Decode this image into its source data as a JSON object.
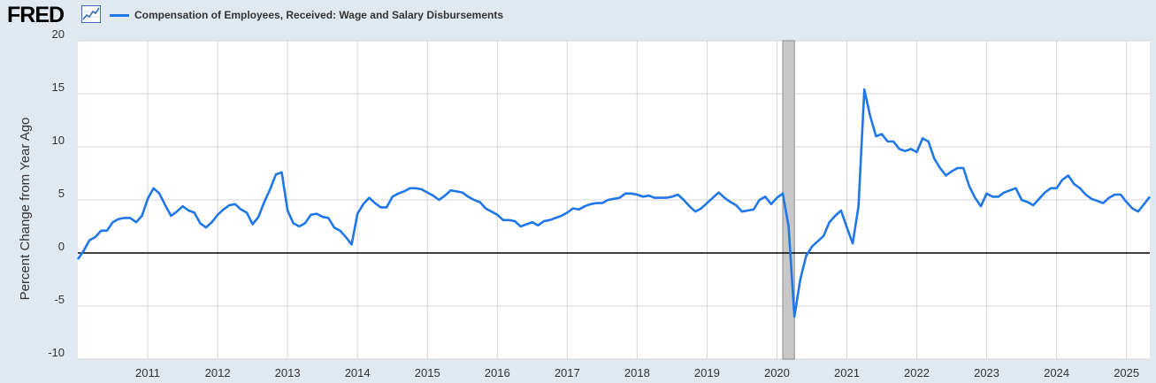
{
  "header": {
    "logo_text": "FRED",
    "logo_icon": "line-graph-icon"
  },
  "colors": {
    "series": "#1f77e8",
    "recession": "#c8c8c8",
    "background": "#e1e9f0",
    "plot": "#ffffff"
  },
  "chart_data": {
    "type": "line",
    "ylabel": "Percent Change from Year Ago",
    "ylim": [
      -10,
      20
    ],
    "yticks": [
      20,
      15,
      10,
      5,
      0,
      -5,
      -10
    ],
    "xlim": [
      "2010-01",
      "2025-05"
    ],
    "xticks": [
      "2011",
      "2012",
      "2013",
      "2014",
      "2015",
      "2016",
      "2017",
      "2018",
      "2019",
      "2020",
      "2021",
      "2022",
      "2023",
      "2024",
      "2025"
    ],
    "grid": true,
    "zero_line": true,
    "legend_position": "top-left",
    "recessions": [
      {
        "start": "2020-02",
        "end": "2020-04"
      }
    ],
    "series": [
      {
        "name": "Compensation of Employees, Received: Wage and Salary Disbursements",
        "x": [
          "2010-01",
          "2010-02",
          "2010-03",
          "2010-04",
          "2010-05",
          "2010-06",
          "2010-07",
          "2010-08",
          "2010-09",
          "2010-10",
          "2010-11",
          "2010-12",
          "2011-01",
          "2011-02",
          "2011-03",
          "2011-04",
          "2011-05",
          "2011-06",
          "2011-07",
          "2011-08",
          "2011-09",
          "2011-10",
          "2011-11",
          "2011-12",
          "2012-01",
          "2012-02",
          "2012-03",
          "2012-04",
          "2012-05",
          "2012-06",
          "2012-07",
          "2012-08",
          "2012-09",
          "2012-10",
          "2012-11",
          "2012-12",
          "2013-01",
          "2013-02",
          "2013-03",
          "2013-04",
          "2013-05",
          "2013-06",
          "2013-07",
          "2013-08",
          "2013-09",
          "2013-10",
          "2013-11",
          "2013-12",
          "2014-01",
          "2014-02",
          "2014-03",
          "2014-04",
          "2014-05",
          "2014-06",
          "2014-07",
          "2014-08",
          "2014-09",
          "2014-10",
          "2014-11",
          "2014-12",
          "2015-01",
          "2015-02",
          "2015-03",
          "2015-04",
          "2015-05",
          "2015-06",
          "2015-07",
          "2015-08",
          "2015-09",
          "2015-10",
          "2015-11",
          "2015-12",
          "2016-01",
          "2016-02",
          "2016-03",
          "2016-04",
          "2016-05",
          "2016-06",
          "2016-07",
          "2016-08",
          "2016-09",
          "2016-10",
          "2016-11",
          "2016-12",
          "2017-01",
          "2017-02",
          "2017-03",
          "2017-04",
          "2017-05",
          "2017-06",
          "2017-07",
          "2017-08",
          "2017-09",
          "2017-10",
          "2017-11",
          "2017-12",
          "2018-01",
          "2018-02",
          "2018-03",
          "2018-04",
          "2018-05",
          "2018-06",
          "2018-07",
          "2018-08",
          "2018-09",
          "2018-10",
          "2018-11",
          "2018-12",
          "2019-01",
          "2019-02",
          "2019-03",
          "2019-04",
          "2019-05",
          "2019-06",
          "2019-07",
          "2019-08",
          "2019-09",
          "2019-10",
          "2019-11",
          "2019-12",
          "2020-01",
          "2020-02",
          "2020-03",
          "2020-04",
          "2020-05",
          "2020-06",
          "2020-07",
          "2020-08",
          "2020-09",
          "2020-10",
          "2020-11",
          "2020-12",
          "2021-01",
          "2021-02",
          "2021-03",
          "2021-04",
          "2021-05",
          "2021-06",
          "2021-07",
          "2021-08",
          "2021-09",
          "2021-10",
          "2021-11",
          "2021-12",
          "2022-01",
          "2022-02",
          "2022-03",
          "2022-04",
          "2022-05",
          "2022-06",
          "2022-07",
          "2022-08",
          "2022-09",
          "2022-10",
          "2022-11",
          "2022-12",
          "2023-01",
          "2023-02",
          "2023-03",
          "2023-04",
          "2023-05",
          "2023-06",
          "2023-07",
          "2023-08",
          "2023-09",
          "2023-10",
          "2023-11",
          "2023-12",
          "2024-01",
          "2024-02",
          "2024-03",
          "2024-04",
          "2024-05",
          "2024-06",
          "2024-07",
          "2024-08",
          "2024-09",
          "2024-10",
          "2024-11",
          "2024-12",
          "2025-01",
          "2025-02",
          "2025-03",
          "2025-04",
          "2025-05"
        ],
        "values": [
          -0.6,
          0.2,
          1.2,
          1.5,
          2.1,
          2.1,
          2.9,
          3.2,
          3.3,
          3.3,
          2.9,
          3.5,
          5.1,
          6.1,
          5.6,
          4.5,
          3.5,
          3.9,
          4.4,
          4.0,
          3.8,
          2.8,
          2.4,
          2.9,
          3.6,
          4.1,
          4.5,
          4.6,
          4.1,
          3.8,
          2.7,
          3.4,
          4.8,
          6.0,
          7.4,
          7.6,
          4.0,
          2.8,
          2.5,
          2.8,
          3.6,
          3.7,
          3.4,
          3.3,
          2.4,
          2.1,
          1.5,
          0.8,
          3.7,
          4.6,
          5.2,
          4.7,
          4.3,
          4.3,
          5.3,
          5.6,
          5.8,
          6.1,
          6.1,
          6.0,
          5.7,
          5.4,
          5.0,
          5.4,
          5.9,
          5.8,
          5.7,
          5.3,
          5.0,
          4.8,
          4.2,
          3.9,
          3.6,
          3.1,
          3.1,
          3.0,
          2.5,
          2.7,
          2.9,
          2.6,
          3.0,
          3.1,
          3.3,
          3.5,
          3.8,
          4.2,
          4.1,
          4.4,
          4.6,
          4.7,
          4.7,
          5.0,
          5.1,
          5.2,
          5.6,
          5.6,
          5.5,
          5.3,
          5.4,
          5.2,
          5.2,
          5.2,
          5.3,
          5.5,
          5.0,
          4.4,
          3.9,
          4.2,
          4.7,
          5.2,
          5.7,
          5.2,
          4.8,
          4.5,
          3.9,
          4.0,
          4.1,
          5.0,
          5.3,
          4.6,
          5.2,
          5.6,
          2.5,
          -6.0,
          -2.5,
          -0.3,
          0.6,
          1.1,
          1.6,
          2.9,
          3.5,
          4.0,
          2.4,
          0.9,
          4.4,
          15.4,
          12.9,
          11.0,
          11.2,
          10.5,
          10.5,
          9.8,
          9.6,
          9.8,
          9.5,
          10.8,
          10.5,
          8.9,
          8.0,
          7.3,
          7.7,
          8.0,
          8.0,
          6.3,
          5.2,
          4.4,
          5.6,
          5.3,
          5.3,
          5.7,
          5.9,
          6.1,
          5.0,
          4.8,
          4.5,
          5.1,
          5.7,
          6.1,
          6.1,
          6.9,
          7.3,
          6.5,
          6.1,
          5.5,
          5.1,
          4.9,
          4.7,
          5.2,
          5.5,
          5.5,
          4.8,
          4.2,
          3.9,
          4.6,
          5.3
        ]
      }
    ]
  }
}
